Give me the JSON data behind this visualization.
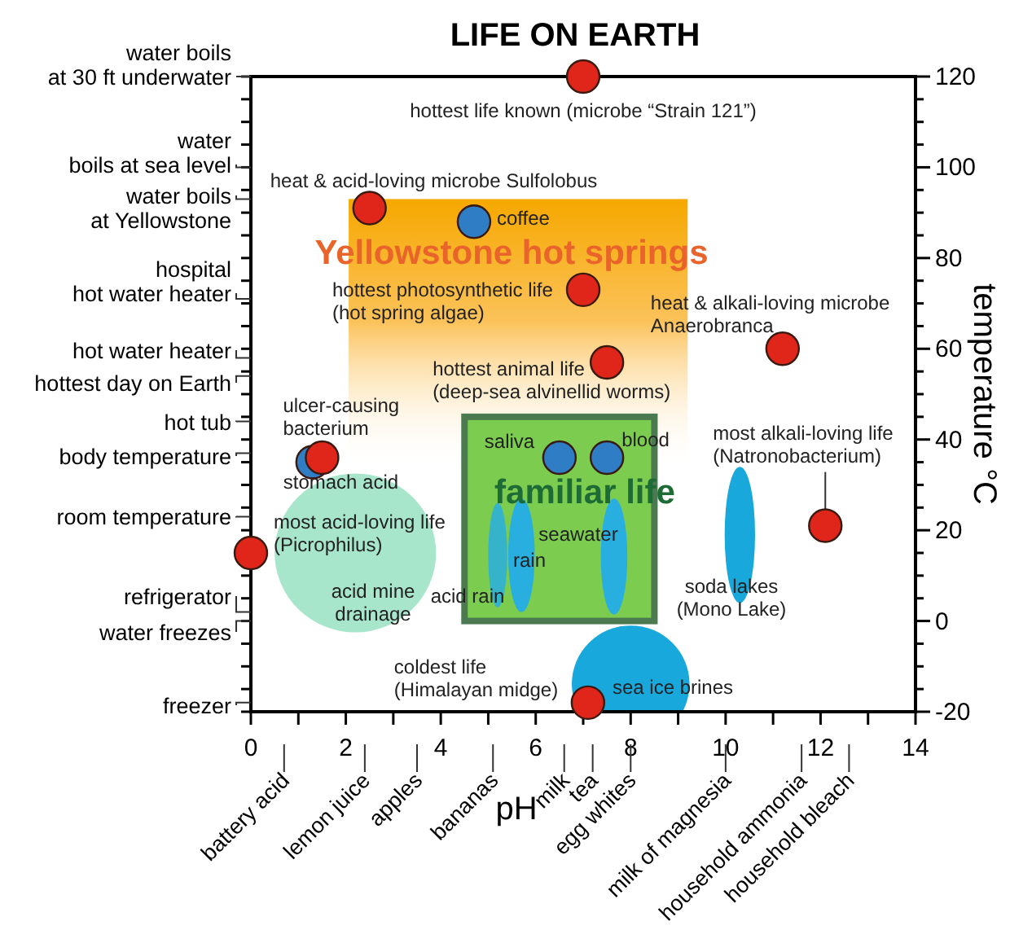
{
  "chart_data": {
    "type": "scatter",
    "title": "LIFE ON EARTH",
    "xlabel": "pH",
    "ylabel": "temperature °C",
    "xlim": [
      0,
      14
    ],
    "ylim": [
      -20,
      120
    ],
    "xticks": [
      0,
      {
        "value": 1,
        "label": null
      },
      2,
      {
        "value": 3,
        "label": null
      },
      4,
      {
        "value": 5,
        "label": null
      },
      6,
      {
        "value": 7,
        "label": null
      },
      8,
      {
        "value": 9,
        "label": null
      },
      10,
      {
        "value": 11,
        "label": null
      },
      12,
      {
        "value": 13,
        "label": null
      },
      14
    ],
    "yticks": [
      -20,
      {
        "value": -15,
        "label": null
      },
      {
        "value": -10,
        "label": null
      },
      {
        "value": -5,
        "label": null
      },
      0,
      {
        "value": 5,
        "label": null
      },
      {
        "value": 10,
        "label": null
      },
      {
        "value": 15,
        "label": null
      },
      20,
      {
        "value": 25,
        "label": null
      },
      {
        "value": 30,
        "label": null
      },
      {
        "value": 35,
        "label": null
      },
      40,
      {
        "value": 45,
        "label": null
      },
      {
        "value": 50,
        "label": null
      },
      {
        "value": 55,
        "label": null
      },
      60,
      {
        "value": 65,
        "label": null
      },
      {
        "value": 70,
        "label": null
      },
      {
        "value": 75,
        "label": null
      },
      80,
      {
        "value": 85,
        "label": null
      },
      {
        "value": 90,
        "label": null
      },
      {
        "value": 95,
        "label": null
      },
      100,
      {
        "value": 105,
        "label": null
      },
      {
        "value": 110,
        "label": null
      },
      {
        "value": 115,
        "label": null
      },
      120
    ],
    "marker": "circle",
    "series": [
      {
        "color": "#2f7dc4",
        "x": [
          4.7,
          1.3,
          6.5,
          7.5
        ],
        "values": [
          88,
          35,
          36,
          36
        ]
      },
      {
        "color": "#e0261b",
        "x": [
          7,
          2.5,
          7,
          11.2,
          7.5,
          1.5,
          12.1,
          0,
          7.1
        ],
        "values": [
          120,
          91,
          73,
          60,
          57,
          36,
          21,
          15,
          -18
        ]
      }
    ],
    "annotations": [
      {
        "text": "hottest life known (microbe “Strain 121”)",
        "x": 7,
        "y": 120
      },
      {
        "text": "heat & acid-loving microbe Sulfolobus",
        "x": 2.5,
        "y": 91
      },
      {
        "text": "coffee",
        "x": 4.7,
        "y": 88
      },
      {
        "text": "hottest photosynthetic life\n(hot spring algae)",
        "x": 7,
        "y": 73
      },
      {
        "text": "heat & alkali-loving microbe\nAnaerobranca",
        "x": 11.2,
        "y": 60
      },
      {
        "text": "hottest animal life\n(deep-sea alvinellid worms)",
        "x": 7.5,
        "y": 57
      },
      {
        "text": "ulcer-causing\nbacterium",
        "x": 1.5,
        "y": 36
      },
      {
        "text": "stomach acid",
        "x": 1.3,
        "y": 35
      },
      {
        "text": "saliva",
        "x": 6.5,
        "y": 36
      },
      {
        "text": "blood",
        "x": 7.5,
        "y": 36
      },
      {
        "text": "most alkali-loving life\n(Natronobacterium)",
        "x": 12.1,
        "y": 21
      },
      {
        "text": "most acid-loving life\n(Picrophilus)",
        "x": 0,
        "y": 15
      },
      {
        "text": "coldest life\n(Himalayan midge)",
        "x": 7.1,
        "y": -18
      },
      "Yellowstone hot springs",
      "familiar life",
      "acid mine\ndrainage",
      "acid rain",
      "rain",
      "seawater",
      "soda lakes\n(Mono Lake)",
      "sea ice brines"
    ],
    "ref_lines": [
      {
        "axis": "y",
        "value": 120,
        "label": "water boils\nat 30 ft underwater"
      },
      {
        "axis": "y",
        "value": 100,
        "label": "water\nboils at sea level"
      },
      {
        "axis": "y",
        "value": 93,
        "label": "water boils\nat Yellowstone"
      },
      {
        "axis": "y",
        "value": 71,
        "label": "hospital\nhot water heater"
      },
      {
        "axis": "y",
        "value": 58,
        "label": "hot water heater"
      },
      {
        "axis": "y",
        "value": 54,
        "label": "hottest day on Earth"
      },
      {
        "axis": "y",
        "value": 44,
        "label": "hot tub"
      },
      {
        "axis": "y",
        "value": 37,
        "label": "body temperature"
      },
      {
        "axis": "y",
        "value": 23,
        "label": "room temperature"
      },
      {
        "axis": "y",
        "value": 2,
        "label": "refrigerator"
      },
      {
        "axis": "y",
        "value": 0,
        "label": "water freezes"
      },
      {
        "axis": "y",
        "value": -18,
        "label": "freezer"
      },
      {
        "axis": "x",
        "value": 0.7,
        "label": "battery acid"
      },
      {
        "axis": "x",
        "value": 2.4,
        "label": "lemon juice"
      },
      {
        "axis": "x",
        "value": 3.5,
        "label": "apples"
      },
      {
        "axis": "x",
        "value": 5.1,
        "label": "bananas"
      },
      {
        "axis": "x",
        "value": 6.6,
        "label": "milk"
      },
      {
        "axis": "x",
        "value": 7.2,
        "label": "tea"
      },
      {
        "axis": "x",
        "value": 8,
        "label": "egg whites"
      },
      {
        "axis": "x",
        "value": 10,
        "label": "milk of magnesia"
      },
      {
        "axis": "x",
        "value": 11.6,
        "label": "household ammonia"
      },
      {
        "axis": "x",
        "value": 12.6,
        "label": "household bleach"
      }
    ]
  }
}
